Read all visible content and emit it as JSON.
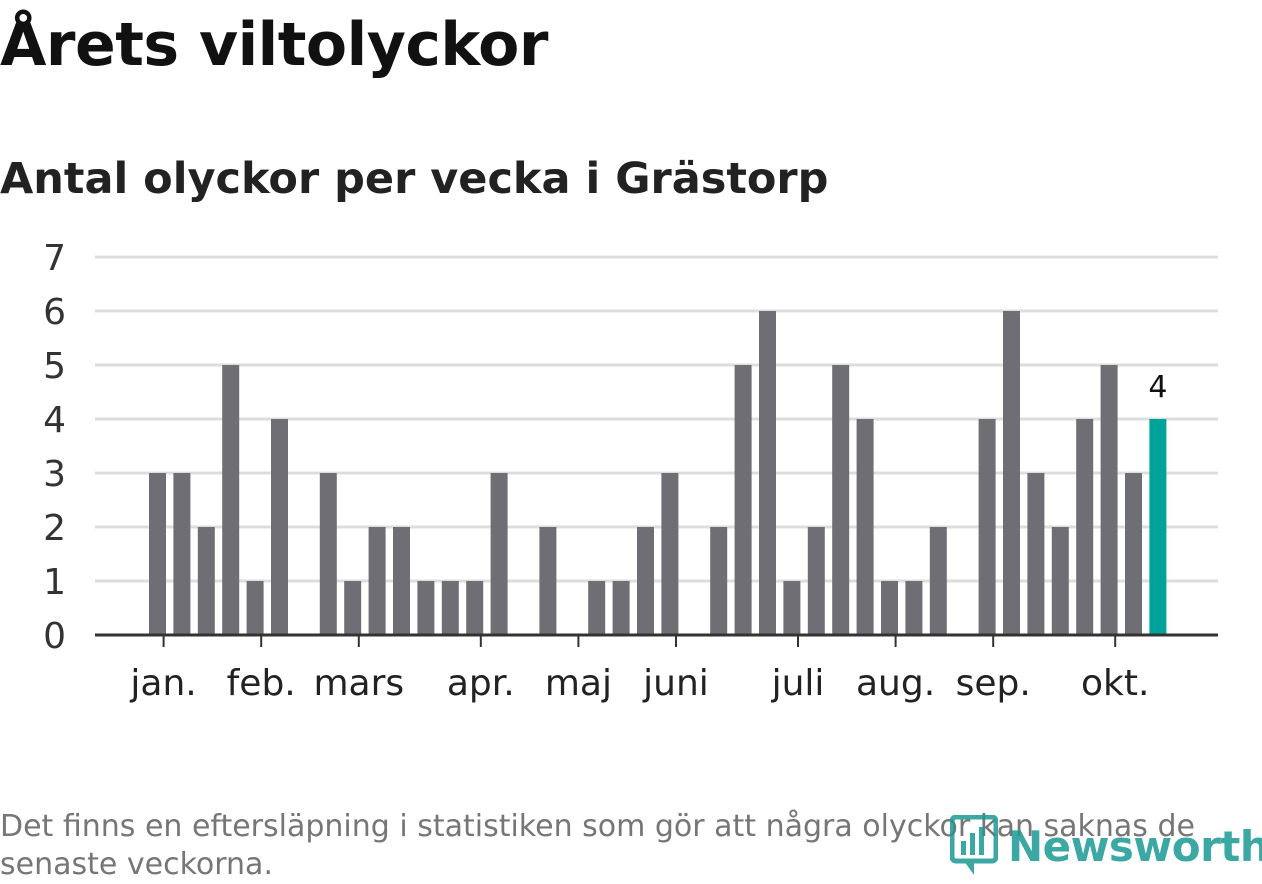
{
  "title": "Årets viltolyckor",
  "subtitle": "Antal olyckor per vecka i Grästorp",
  "note": "Det finns en eftersläpning i statistiken som gör att några olyckor kan saknas de senaste veckorna.",
  "logo": {
    "text": "Newsworthy",
    "icon": "newsworthy-logo-icon"
  },
  "colors": {
    "bar": "#6f6e74",
    "highlight": "#00a39a",
    "grid": "#dddddd",
    "axis": "#333333"
  },
  "chart_data": {
    "type": "bar",
    "title": "Antal olyckor per vecka i Grästorp",
    "xlabel": "",
    "ylabel": "",
    "ylim": [
      0,
      7
    ],
    "yticks": [
      0,
      1,
      2,
      3,
      4,
      5,
      6,
      7
    ],
    "grid": true,
    "x": [
      1,
      2,
      3,
      4,
      5,
      6,
      7,
      8,
      9,
      10,
      11,
      12,
      13,
      14,
      15,
      16,
      17,
      18,
      19,
      20,
      21,
      22,
      23,
      24,
      25,
      26,
      27,
      28,
      29,
      30,
      31,
      32,
      33,
      34,
      35,
      36,
      37,
      38,
      39,
      40,
      41,
      42
    ],
    "values": [
      3,
      3,
      2,
      5,
      1,
      4,
      0,
      3,
      1,
      2,
      2,
      1,
      1,
      1,
      3,
      0,
      2,
      0,
      1,
      1,
      2,
      3,
      0,
      2,
      5,
      6,
      1,
      2,
      5,
      4,
      1,
      1,
      2,
      0,
      4,
      6,
      3,
      2,
      4,
      5,
      3,
      4
    ],
    "highlight_index": 41,
    "highlight_label": "4",
    "month_labels": [
      {
        "label": "jan.",
        "tick_at": 1.25
      },
      {
        "label": "feb.",
        "tick_at": 5.25
      },
      {
        "label": "mars",
        "tick_at": 9.25
      },
      {
        "label": "apr.",
        "tick_at": 14.25
      },
      {
        "label": "maj",
        "tick_at": 18.25
      },
      {
        "label": "juni",
        "tick_at": 22.25
      },
      {
        "label": "juli",
        "tick_at": 27.25
      },
      {
        "label": "aug.",
        "tick_at": 31.25
      },
      {
        "label": "sep.",
        "tick_at": 35.25
      },
      {
        "label": "okt.",
        "tick_at": 40.25
      }
    ]
  }
}
